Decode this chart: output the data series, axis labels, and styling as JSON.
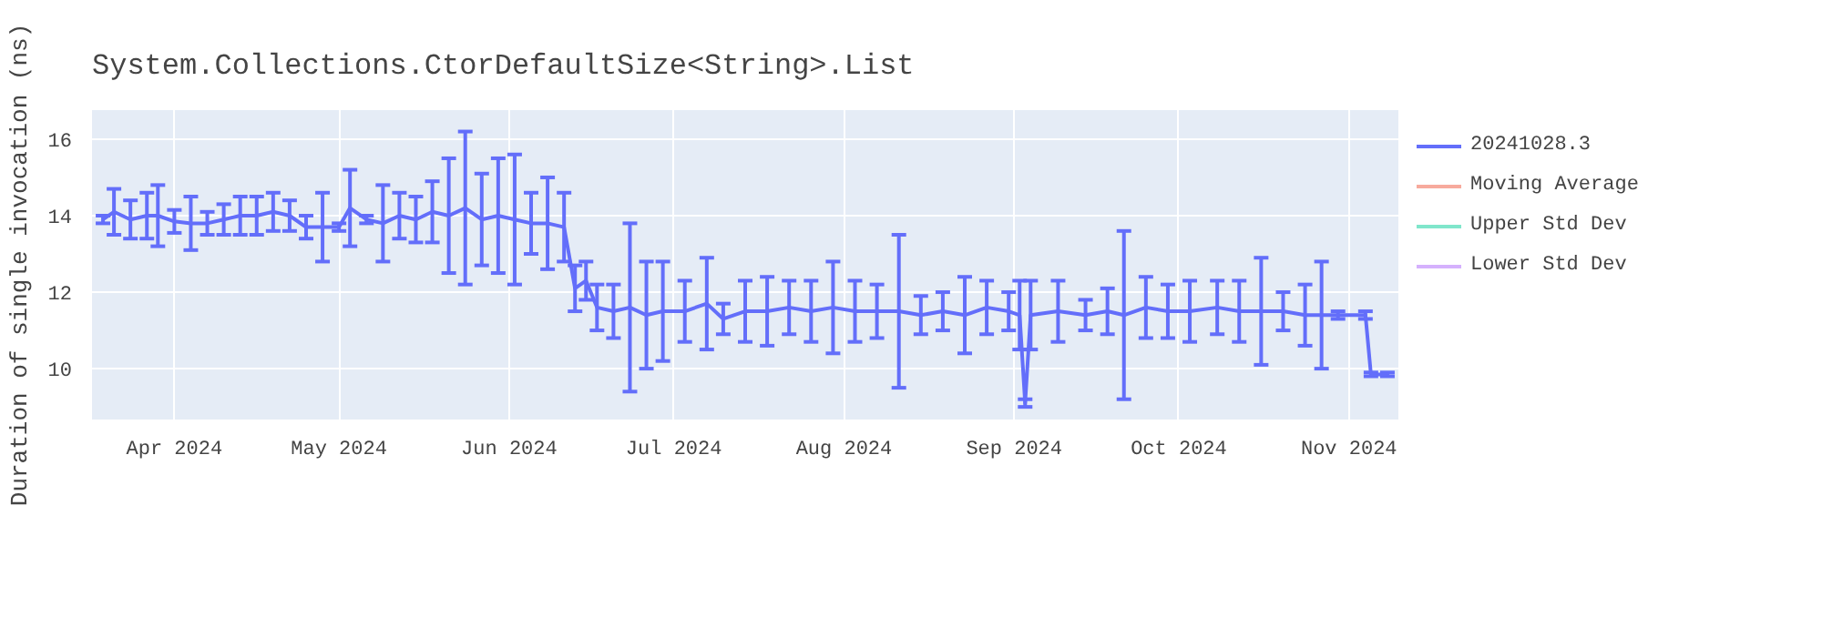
{
  "chart_data": {
    "type": "line",
    "title": "System.Collections.CtorDefaultSize<String>.List",
    "ylabel": "Duration of single invocation (ns)",
    "xlim": [
      "2024-03-17",
      "2024-11-10"
    ],
    "ylim": [
      8.67,
      16.76
    ],
    "xticks": [
      {
        "value": "2024-04-01",
        "label": "Apr 2024"
      },
      {
        "value": "2024-05-01",
        "label": "May 2024"
      },
      {
        "value": "2024-06-01",
        "label": "Jun 2024"
      },
      {
        "value": "2024-07-01",
        "label": "Jul 2024"
      },
      {
        "value": "2024-08-01",
        "label": "Aug 2024"
      },
      {
        "value": "2024-09-01",
        "label": "Sep 2024"
      },
      {
        "value": "2024-10-01",
        "label": "Oct 2024"
      },
      {
        "value": "2024-11-01",
        "label": "Nov 2024"
      }
    ],
    "yticks": [
      10,
      12,
      14,
      16
    ],
    "grid": true,
    "legend": "right",
    "marker": "none",
    "line_style": "solid",
    "series": [
      {
        "name": "20241028.3",
        "color": "#636efa",
        "x": [
          "2024-03-19",
          "2024-03-21",
          "2024-03-24",
          "2024-03-27",
          "2024-03-29",
          "2024-04-01",
          "2024-04-04",
          "2024-04-07",
          "2024-04-10",
          "2024-04-13",
          "2024-04-16",
          "2024-04-19",
          "2024-04-22",
          "2024-04-25",
          "2024-04-28",
          "2024-05-01",
          "2024-05-03",
          "2024-05-06",
          "2024-05-09",
          "2024-05-12",
          "2024-05-15",
          "2024-05-18",
          "2024-05-21",
          "2024-05-24",
          "2024-05-27",
          "2024-05-30",
          "2024-06-02",
          "2024-06-05",
          "2024-06-08",
          "2024-06-11",
          "2024-06-13",
          "2024-06-15",
          "2024-06-17",
          "2024-06-20",
          "2024-06-23",
          "2024-06-26",
          "2024-06-29",
          "2024-07-03",
          "2024-07-07",
          "2024-07-10",
          "2024-07-14",
          "2024-07-18",
          "2024-07-22",
          "2024-07-26",
          "2024-07-30",
          "2024-08-03",
          "2024-08-07",
          "2024-08-11",
          "2024-08-15",
          "2024-08-19",
          "2024-08-23",
          "2024-08-27",
          "2024-08-31",
          "2024-09-02",
          "2024-09-03",
          "2024-09-04",
          "2024-09-09",
          "2024-09-14",
          "2024-09-18",
          "2024-09-21",
          "2024-09-25",
          "2024-09-29",
          "2024-10-03",
          "2024-10-08",
          "2024-10-12",
          "2024-10-16",
          "2024-10-20",
          "2024-10-24",
          "2024-10-27",
          "2024-10-30",
          "2024-11-04",
          "2024-11-05",
          "2024-11-08"
        ],
        "values": [
          13.9,
          14.1,
          13.9,
          14.0,
          14.0,
          13.85,
          13.8,
          13.8,
          13.9,
          14.0,
          14.0,
          14.1,
          14.0,
          13.7,
          13.7,
          13.7,
          14.2,
          13.9,
          13.8,
          14.0,
          13.9,
          14.1,
          14.0,
          14.2,
          13.9,
          14.0,
          13.9,
          13.8,
          13.8,
          13.7,
          12.1,
          12.3,
          11.6,
          11.5,
          11.6,
          11.4,
          11.5,
          11.5,
          11.7,
          11.3,
          11.5,
          11.5,
          11.6,
          11.5,
          11.6,
          11.5,
          11.5,
          11.5,
          11.4,
          11.5,
          11.4,
          11.6,
          11.5,
          11.4,
          9.1,
          11.4,
          11.5,
          11.4,
          11.5,
          11.4,
          11.6,
          11.5,
          11.5,
          11.6,
          11.5,
          11.5,
          11.5,
          11.4,
          11.4,
          11.4,
          11.4,
          9.85,
          9.85
        ],
        "errors": [
          0.1,
          0.6,
          0.5,
          0.6,
          0.8,
          0.3,
          0.7,
          0.3,
          0.4,
          0.5,
          0.5,
          0.5,
          0.4,
          0.3,
          0.9,
          0.1,
          1.0,
          0.1,
          1.0,
          0.6,
          0.6,
          0.8,
          1.5,
          2.0,
          1.2,
          1.5,
          1.7,
          0.8,
          1.2,
          0.9,
          0.6,
          0.5,
          0.6,
          0.7,
          2.2,
          1.4,
          1.3,
          0.8,
          1.2,
          0.4,
          0.8,
          0.9,
          0.7,
          0.8,
          1.2,
          0.8,
          0.7,
          2.0,
          0.5,
          0.5,
          1.0,
          0.7,
          0.5,
          0.9,
          0.1,
          0.9,
          0.8,
          0.4,
          0.6,
          2.2,
          0.8,
          0.7,
          0.8,
          0.7,
          0.8,
          1.4,
          0.5,
          0.8,
          1.4,
          0.1,
          0.1,
          0.05,
          0.05
        ]
      },
      {
        "name": "Moving Average",
        "color": "#f7aa9d"
      },
      {
        "name": "Upper Std Dev",
        "color": "#80e6cb"
      },
      {
        "name": "Lower Std Dev",
        "color": "#d5b1fd"
      }
    ]
  }
}
